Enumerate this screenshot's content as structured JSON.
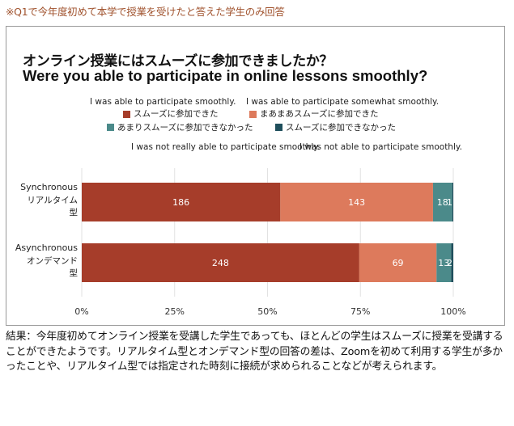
{
  "note": "※Q1で今年度初めて本学で授業を受けたと答えた学生のみ回答",
  "chart_title_ja": "オンライン授業にはスムーズに参加できましたか？",
  "chart_title_en": "Were you able to participate in online lessons smoothly?",
  "summary": "結果：今年度初めてオンライン授業を受講した学生であっても、ほとんどの学生はスムーズに授業を受講することができたようです。リアルタイム型とオンデマンド型の回答の差は、Zoomを初めて利用する学生が多かったことや、リアルタイム型では指定された時刻に接続が求められることなどが考えられます。",
  "colors": {
    "s1": "#a63d2a",
    "s2": "#dd7a5c",
    "s3": "#4b8a8a",
    "s4": "#1f4f5c"
  },
  "chart_data": {
    "type": "bar",
    "orientation": "horizontal",
    "stacked": "percent",
    "categories": [
      {
        "en": "Synchronous",
        "ja1": "リアルタイム",
        "ja2": "型"
      },
      {
        "en": "Asynchronous",
        "ja1": "オンデマンド",
        "ja2": "型"
      }
    ],
    "series": [
      {
        "name_en": "I was able to participate smoothly.",
        "name_ja": "スムーズに参加できた",
        "values": [
          186,
          248
        ],
        "labels": [
          "186",
          "248"
        ]
      },
      {
        "name_en": "I was able to participate somewhat smoothly.",
        "name_ja": "まあまあスムーズに参加できた",
        "values": [
          143,
          69
        ],
        "labels": [
          "143",
          "69"
        ]
      },
      {
        "name_en": "I was not really able to participate smoothly.",
        "name_ja": "あまりスムーズに参加できなかった",
        "values": [
          18,
          13
        ],
        "labels": [
          "18",
          "13"
        ]
      },
      {
        "name_en": "I was not able to participate smoothly.",
        "name_ja": "スムーズに参加できなかった",
        "values": [
          1,
          2
        ],
        "labels": [
          "1",
          "2"
        ]
      }
    ],
    "xticks": [
      "0%",
      "25%",
      "50%",
      "75%",
      "100%"
    ],
    "xlim": [
      0,
      1
    ],
    "grid": true,
    "legend": "top"
  }
}
